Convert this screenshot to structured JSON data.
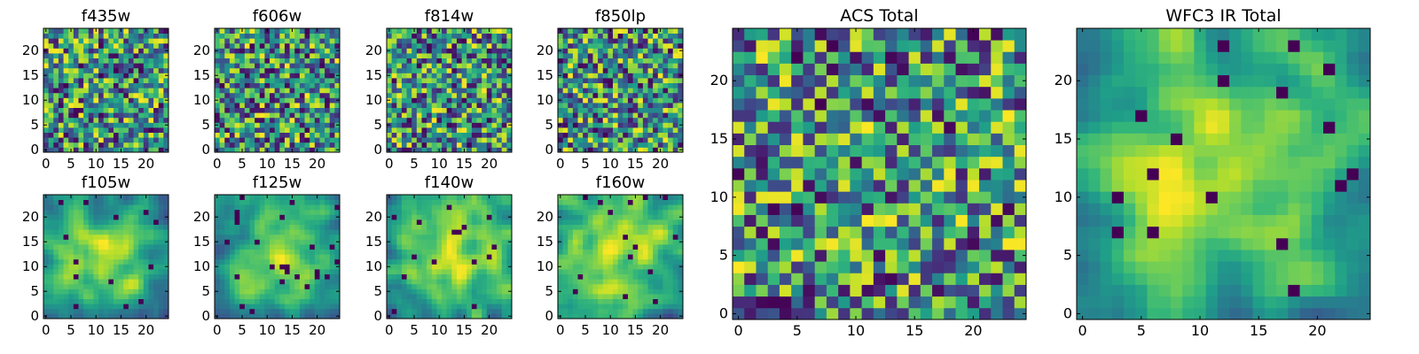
{
  "figure": {
    "title": ""
  },
  "chart_data": [
    {
      "type": "heatmap",
      "title": "f435w",
      "xlim": [
        0,
        24
      ],
      "ylim": [
        0,
        24
      ],
      "xticks": [
        "0",
        "5",
        "10",
        "15",
        "20"
      ],
      "yticks": [
        "0",
        "5",
        "10",
        "15",
        "20"
      ],
      "colormap": "viridis",
      "pattern": "noise",
      "vmin": 0,
      "vmax": 1,
      "seed": 11
    },
    {
      "type": "heatmap",
      "title": "f606w",
      "xlim": [
        0,
        24
      ],
      "ylim": [
        0,
        24
      ],
      "xticks": [
        "0",
        "5",
        "10",
        "15",
        "20"
      ],
      "yticks": [
        "0",
        "5",
        "10",
        "15",
        "20"
      ],
      "colormap": "viridis",
      "pattern": "noise",
      "vmin": 0,
      "vmax": 1,
      "seed": 23
    },
    {
      "type": "heatmap",
      "title": "f814w",
      "xlim": [
        0,
        24
      ],
      "ylim": [
        0,
        24
      ],
      "xticks": [
        "0",
        "5",
        "10",
        "15",
        "20"
      ],
      "yticks": [
        "0",
        "5",
        "10",
        "15",
        "20"
      ],
      "colormap": "viridis",
      "pattern": "noise",
      "vmin": 0,
      "vmax": 1,
      "seed": 37
    },
    {
      "type": "heatmap",
      "title": "f850lp",
      "xlim": [
        0,
        24
      ],
      "ylim": [
        0,
        24
      ],
      "xticks": [
        "0",
        "5",
        "10",
        "15",
        "20"
      ],
      "yticks": [
        "0",
        "5",
        "10",
        "15",
        "20"
      ],
      "colormap": "viridis",
      "pattern": "noise",
      "vmin": 0,
      "vmax": 1,
      "seed": 41
    },
    {
      "type": "heatmap",
      "title": "f105w",
      "xlim": [
        0,
        24
      ],
      "ylim": [
        0,
        24
      ],
      "xticks": [
        "0",
        "5",
        "10",
        "15",
        "20"
      ],
      "yticks": [
        "0",
        "5",
        "10",
        "15",
        "20"
      ],
      "colormap": "viridis",
      "pattern": "smooth",
      "vmin": 0,
      "vmax": 1,
      "seed": 53
    },
    {
      "type": "heatmap",
      "title": "f125w",
      "xlim": [
        0,
        24
      ],
      "ylim": [
        0,
        24
      ],
      "xticks": [
        "0",
        "5",
        "10",
        "15",
        "20"
      ],
      "yticks": [
        "0",
        "5",
        "10",
        "15",
        "20"
      ],
      "colormap": "viridis",
      "pattern": "smooth",
      "vmin": 0,
      "vmax": 1,
      "seed": 67
    },
    {
      "type": "heatmap",
      "title": "f140w",
      "xlim": [
        0,
        24
      ],
      "ylim": [
        0,
        24
      ],
      "xticks": [
        "0",
        "5",
        "10",
        "15",
        "20"
      ],
      "yticks": [
        "0",
        "5",
        "10",
        "15",
        "20"
      ],
      "colormap": "viridis",
      "pattern": "smooth",
      "vmin": 0,
      "vmax": 1,
      "seed": 79
    },
    {
      "type": "heatmap",
      "title": "f160w",
      "xlim": [
        0,
        24
      ],
      "ylim": [
        0,
        24
      ],
      "xticks": [
        "0",
        "5",
        "10",
        "15",
        "20"
      ],
      "yticks": [
        "0",
        "5",
        "10",
        "15",
        "20"
      ],
      "colormap": "viridis",
      "pattern": "smooth",
      "vmin": 0,
      "vmax": 1,
      "seed": 83
    },
    {
      "type": "heatmap",
      "title": "ACS Total",
      "xlim": [
        0,
        24
      ],
      "ylim": [
        0,
        24
      ],
      "xticks": [
        "0",
        "5",
        "10",
        "15",
        "20"
      ],
      "yticks": [
        "0",
        "5",
        "10",
        "15",
        "20"
      ],
      "colormap": "viridis",
      "pattern": "noise",
      "vmin": 0,
      "vmax": 1,
      "seed": 97
    },
    {
      "type": "heatmap",
      "title": "WFC3 IR Total",
      "xlim": [
        0,
        24
      ],
      "ylim": [
        0,
        24
      ],
      "xticks": [
        "0",
        "5",
        "10",
        "15",
        "20"
      ],
      "yticks": [
        "0",
        "5",
        "10",
        "15",
        "20"
      ],
      "colormap": "viridis",
      "pattern": "smooth",
      "vmin": 0,
      "vmax": 1,
      "seed": 101
    }
  ],
  "colors": {
    "viridis_dark": "#440154",
    "viridis_blue": "#31688e",
    "viridis_teal": "#21918c",
    "viridis_green": "#35b779",
    "viridis_yellow": "#fde725"
  }
}
